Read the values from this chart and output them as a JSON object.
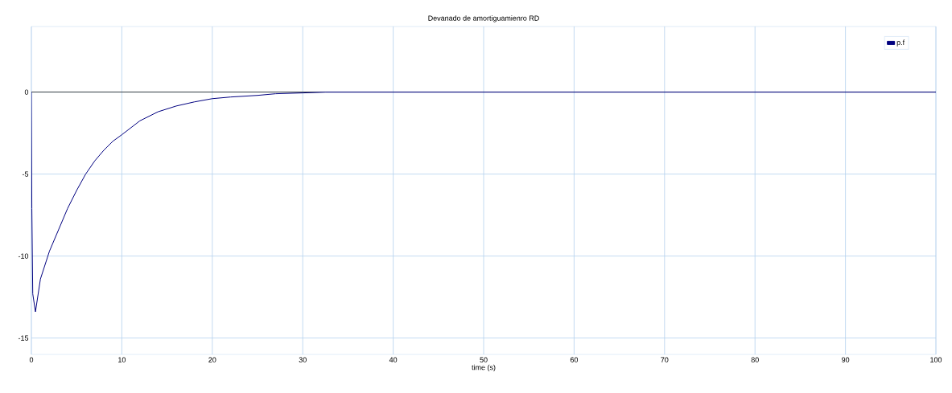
{
  "chart_data": {
    "type": "line",
    "title": "Devanado de amortiguamienro RD",
    "xlabel": "time (s)",
    "x": [
      0,
      0.05,
      0.15,
      0.45,
      1,
      2,
      3,
      4,
      5,
      6,
      7,
      8,
      9,
      10,
      12,
      14,
      16,
      18,
      20,
      22,
      25,
      27,
      30,
      32.5,
      100
    ],
    "series": [
      {
        "name": "p.f",
        "color": "#000080",
        "values": [
          0,
          -7.1,
          -12.3,
          -13.4,
          -11.4,
          -9.7,
          -8.4,
          -7.1,
          -6.0,
          -5.0,
          -4.2,
          -3.55,
          -3.0,
          -2.6,
          -1.75,
          -1.2,
          -0.85,
          -0.6,
          -0.4,
          -0.3,
          -0.2,
          -0.1,
          -0.05,
          0,
          0
        ]
      }
    ],
    "xlim": [
      0,
      100
    ],
    "ylim": [
      -16,
      4
    ],
    "xticks": [
      0,
      10,
      20,
      30,
      40,
      50,
      60,
      70,
      80,
      90,
      100
    ],
    "yticks": [
      -15,
      -10,
      -5,
      0
    ],
    "ref_lines": [
      {
        "axis": "y",
        "value": 0,
        "color": "#000000"
      }
    ],
    "grid": true,
    "legend": "top right"
  }
}
